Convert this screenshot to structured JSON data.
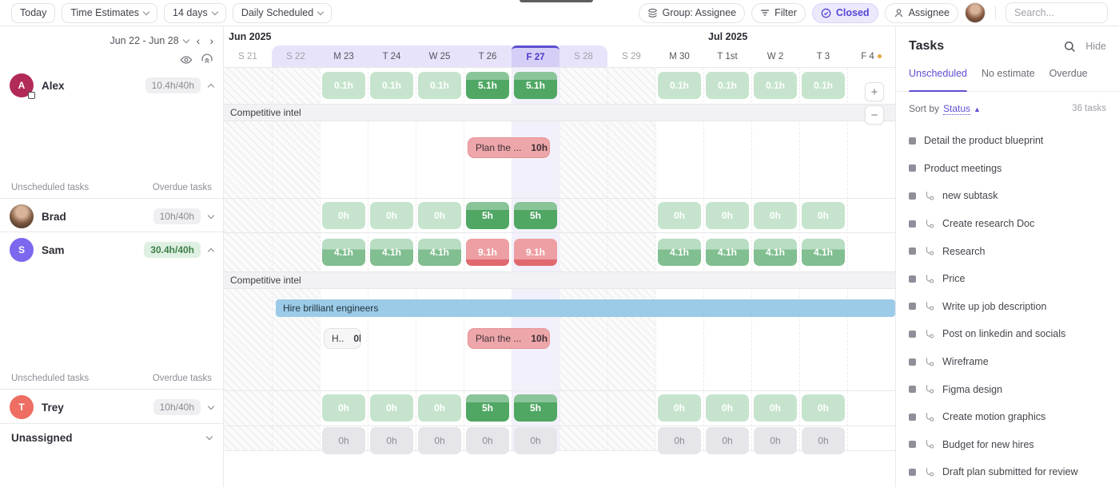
{
  "topbar": {
    "today": "Today",
    "time_estimates": "Time Estimates",
    "range": "14 days",
    "schedule_mode": "Daily Scheduled",
    "group": "Group: Assignee",
    "filter": "Filter",
    "closed": "Closed",
    "assignee": "Assignee",
    "search_placeholder": "Search..."
  },
  "accent_color": "#5d4ed1",
  "sidebar": {
    "date_range": "Jun 22 - Jun 28",
    "unscheduled_label": "Unscheduled tasks",
    "overdue_label": "Overdue tasks"
  },
  "timeline": {
    "months": [
      {
        "label": "Jun 2025",
        "col": 0
      },
      {
        "label": "Jul 2025",
        "col": 10
      }
    ],
    "days": [
      {
        "label": "S 21",
        "weekend": true
      },
      {
        "label": "S 22",
        "weekend": true,
        "selected": true
      },
      {
        "label": "M 23",
        "selected": true
      },
      {
        "label": "T 24",
        "selected": true
      },
      {
        "label": "W 25",
        "selected": true
      },
      {
        "label": "T 26",
        "selected": true
      },
      {
        "label": "F 27",
        "selected": true,
        "today": true
      },
      {
        "label": "S 28",
        "weekend": true,
        "selected": true
      },
      {
        "label": "S 29",
        "weekend": true
      },
      {
        "label": "M 30"
      },
      {
        "label": "T 1st"
      },
      {
        "label": "W 2"
      },
      {
        "label": "T 3"
      },
      {
        "label": "F 4",
        "dot": true
      }
    ]
  },
  "rows": [
    {
      "name": "Alex",
      "initial": "A",
      "avatar_color": "#b12a58",
      "hours": "10.4h/40h",
      "hours_style": "gray",
      "expanded": true,
      "footer": true,
      "chips": [
        {
          "day": 2,
          "label": "0.1h",
          "variant": "light"
        },
        {
          "day": 3,
          "label": "0.1h",
          "variant": "light"
        },
        {
          "day": 4,
          "label": "0.1h",
          "variant": "light"
        },
        {
          "day": 5,
          "label": "5.1h",
          "variant": "dark"
        },
        {
          "day": 6,
          "label": "5.1h",
          "variant": "dark"
        },
        {
          "day": 9,
          "label": "0.1h",
          "variant": "light"
        },
        {
          "day": 10,
          "label": "0.1h",
          "variant": "light"
        },
        {
          "day": 11,
          "label": "0.1h",
          "variant": "light"
        },
        {
          "day": 12,
          "label": "0.1h",
          "variant": "light"
        }
      ],
      "sections": [
        {
          "type": "group",
          "label": "Competitive intel"
        },
        {
          "type": "tasks",
          "chips": [
            {
              "day": 5,
              "span": 1.85,
              "label": "Plan the ...",
              "icon": "people-icon",
              "value": "10h",
              "variant": "pink"
            }
          ]
        }
      ]
    },
    {
      "name": "Brad",
      "photo": true,
      "hours": "10h/40h",
      "hours_style": "gray",
      "expanded": false,
      "chips": [
        {
          "day": 2,
          "label": "0h",
          "variant": "light"
        },
        {
          "day": 3,
          "label": "0h",
          "variant": "light"
        },
        {
          "day": 4,
          "label": "0h",
          "variant": "light"
        },
        {
          "day": 5,
          "label": "5h",
          "variant": "dark"
        },
        {
          "day": 6,
          "label": "5h",
          "variant": "dark"
        },
        {
          "day": 9,
          "label": "0h",
          "variant": "light"
        },
        {
          "day": 10,
          "label": "0h",
          "variant": "light"
        },
        {
          "day": 11,
          "label": "0h",
          "variant": "light"
        },
        {
          "day": 12,
          "label": "0h",
          "variant": "light"
        }
      ]
    },
    {
      "name": "Sam",
      "initial": "S",
      "avatar_color": "#7b68ee",
      "hours": "30.4h/40h",
      "hours_style": "green",
      "expanded": true,
      "footer": true,
      "chips": [
        {
          "day": 2,
          "label": "4.1h",
          "variant": "mid"
        },
        {
          "day": 3,
          "label": "4.1h",
          "variant": "mid"
        },
        {
          "day": 4,
          "label": "4.1h",
          "variant": "mid"
        },
        {
          "day": 5,
          "label": "9.1h",
          "variant": "red"
        },
        {
          "day": 6,
          "label": "9.1h",
          "variant": "red"
        },
        {
          "day": 9,
          "label": "4.1h",
          "variant": "mid"
        },
        {
          "day": 10,
          "label": "4.1h",
          "variant": "mid"
        },
        {
          "day": 11,
          "label": "4.1h",
          "variant": "mid"
        },
        {
          "day": 12,
          "label": "4.1h",
          "variant": "mid"
        }
      ],
      "sections": [
        {
          "type": "group",
          "label": "Competitive intel"
        },
        {
          "type": "bar",
          "label": "Hire brilliant engineers",
          "from": 1
        },
        {
          "type": "tasks",
          "chips": [
            {
              "day": 2,
              "span": 0.92,
              "label": "H..",
              "value": "0h",
              "variant": "white"
            },
            {
              "day": 5,
              "span": 1.85,
              "label": "Plan the ...",
              "icon": "people-icon",
              "value": "10h",
              "variant": "pink"
            }
          ]
        }
      ]
    },
    {
      "name": "Trey",
      "initial": "T",
      "avatar_color": "#ee6e63",
      "hours": "10h/40h",
      "hours_style": "gray",
      "expanded": false,
      "chips": [
        {
          "day": 2,
          "label": "0h",
          "variant": "light"
        },
        {
          "day": 3,
          "label": "0h",
          "variant": "light"
        },
        {
          "day": 4,
          "label": "0h",
          "variant": "light"
        },
        {
          "day": 5,
          "label": "5h",
          "variant": "dark"
        },
        {
          "day": 6,
          "label": "5h",
          "variant": "dark"
        },
        {
          "day": 9,
          "label": "0h",
          "variant": "light"
        },
        {
          "day": 10,
          "label": "0h",
          "variant": "light"
        },
        {
          "day": 11,
          "label": "0h",
          "variant": "light"
        },
        {
          "day": 12,
          "label": "0h",
          "variant": "light"
        }
      ]
    },
    {
      "name": "Unassigned",
      "unassigned": true,
      "chips": [
        {
          "day": 2,
          "label": "0h",
          "variant": "gray"
        },
        {
          "day": 3,
          "label": "0h",
          "variant": "gray"
        },
        {
          "day": 4,
          "label": "0h",
          "variant": "gray"
        },
        {
          "day": 5,
          "label": "0h",
          "variant": "gray"
        },
        {
          "day": 6,
          "label": "0h",
          "variant": "gray"
        },
        {
          "day": 9,
          "label": "0h",
          "variant": "gray"
        },
        {
          "day": 10,
          "label": "0h",
          "variant": "gray"
        },
        {
          "day": 11,
          "label": "0h",
          "variant": "gray"
        },
        {
          "day": 12,
          "label": "0h",
          "variant": "gray"
        }
      ]
    }
  ],
  "tasks_panel": {
    "title": "Tasks",
    "hide": "Hide",
    "tabs": [
      {
        "label": "Unscheduled",
        "active": true
      },
      {
        "label": "No estimate",
        "active": false
      },
      {
        "label": "Overdue",
        "active": false
      }
    ],
    "sort_by": "Sort by",
    "sort_field": "Status",
    "count": "36 tasks",
    "items": [
      {
        "label": "Detail the product blueprint",
        "subtask": false
      },
      {
        "label": "Product meetings",
        "subtask": false
      },
      {
        "label": "new subtask",
        "subtask": true
      },
      {
        "label": "Create research Doc",
        "subtask": true
      },
      {
        "label": "Research",
        "subtask": true
      },
      {
        "label": "Price",
        "subtask": true
      },
      {
        "label": "Write up job description",
        "subtask": true
      },
      {
        "label": "Post on linkedin and socials",
        "subtask": true
      },
      {
        "label": "Wireframe",
        "subtask": true
      },
      {
        "label": "Figma design",
        "subtask": true
      },
      {
        "label": "Create motion graphics",
        "subtask": true
      },
      {
        "label": "Budget for new hires",
        "subtask": true
      },
      {
        "label": "Draft plan submitted for review",
        "subtask": true
      }
    ]
  }
}
